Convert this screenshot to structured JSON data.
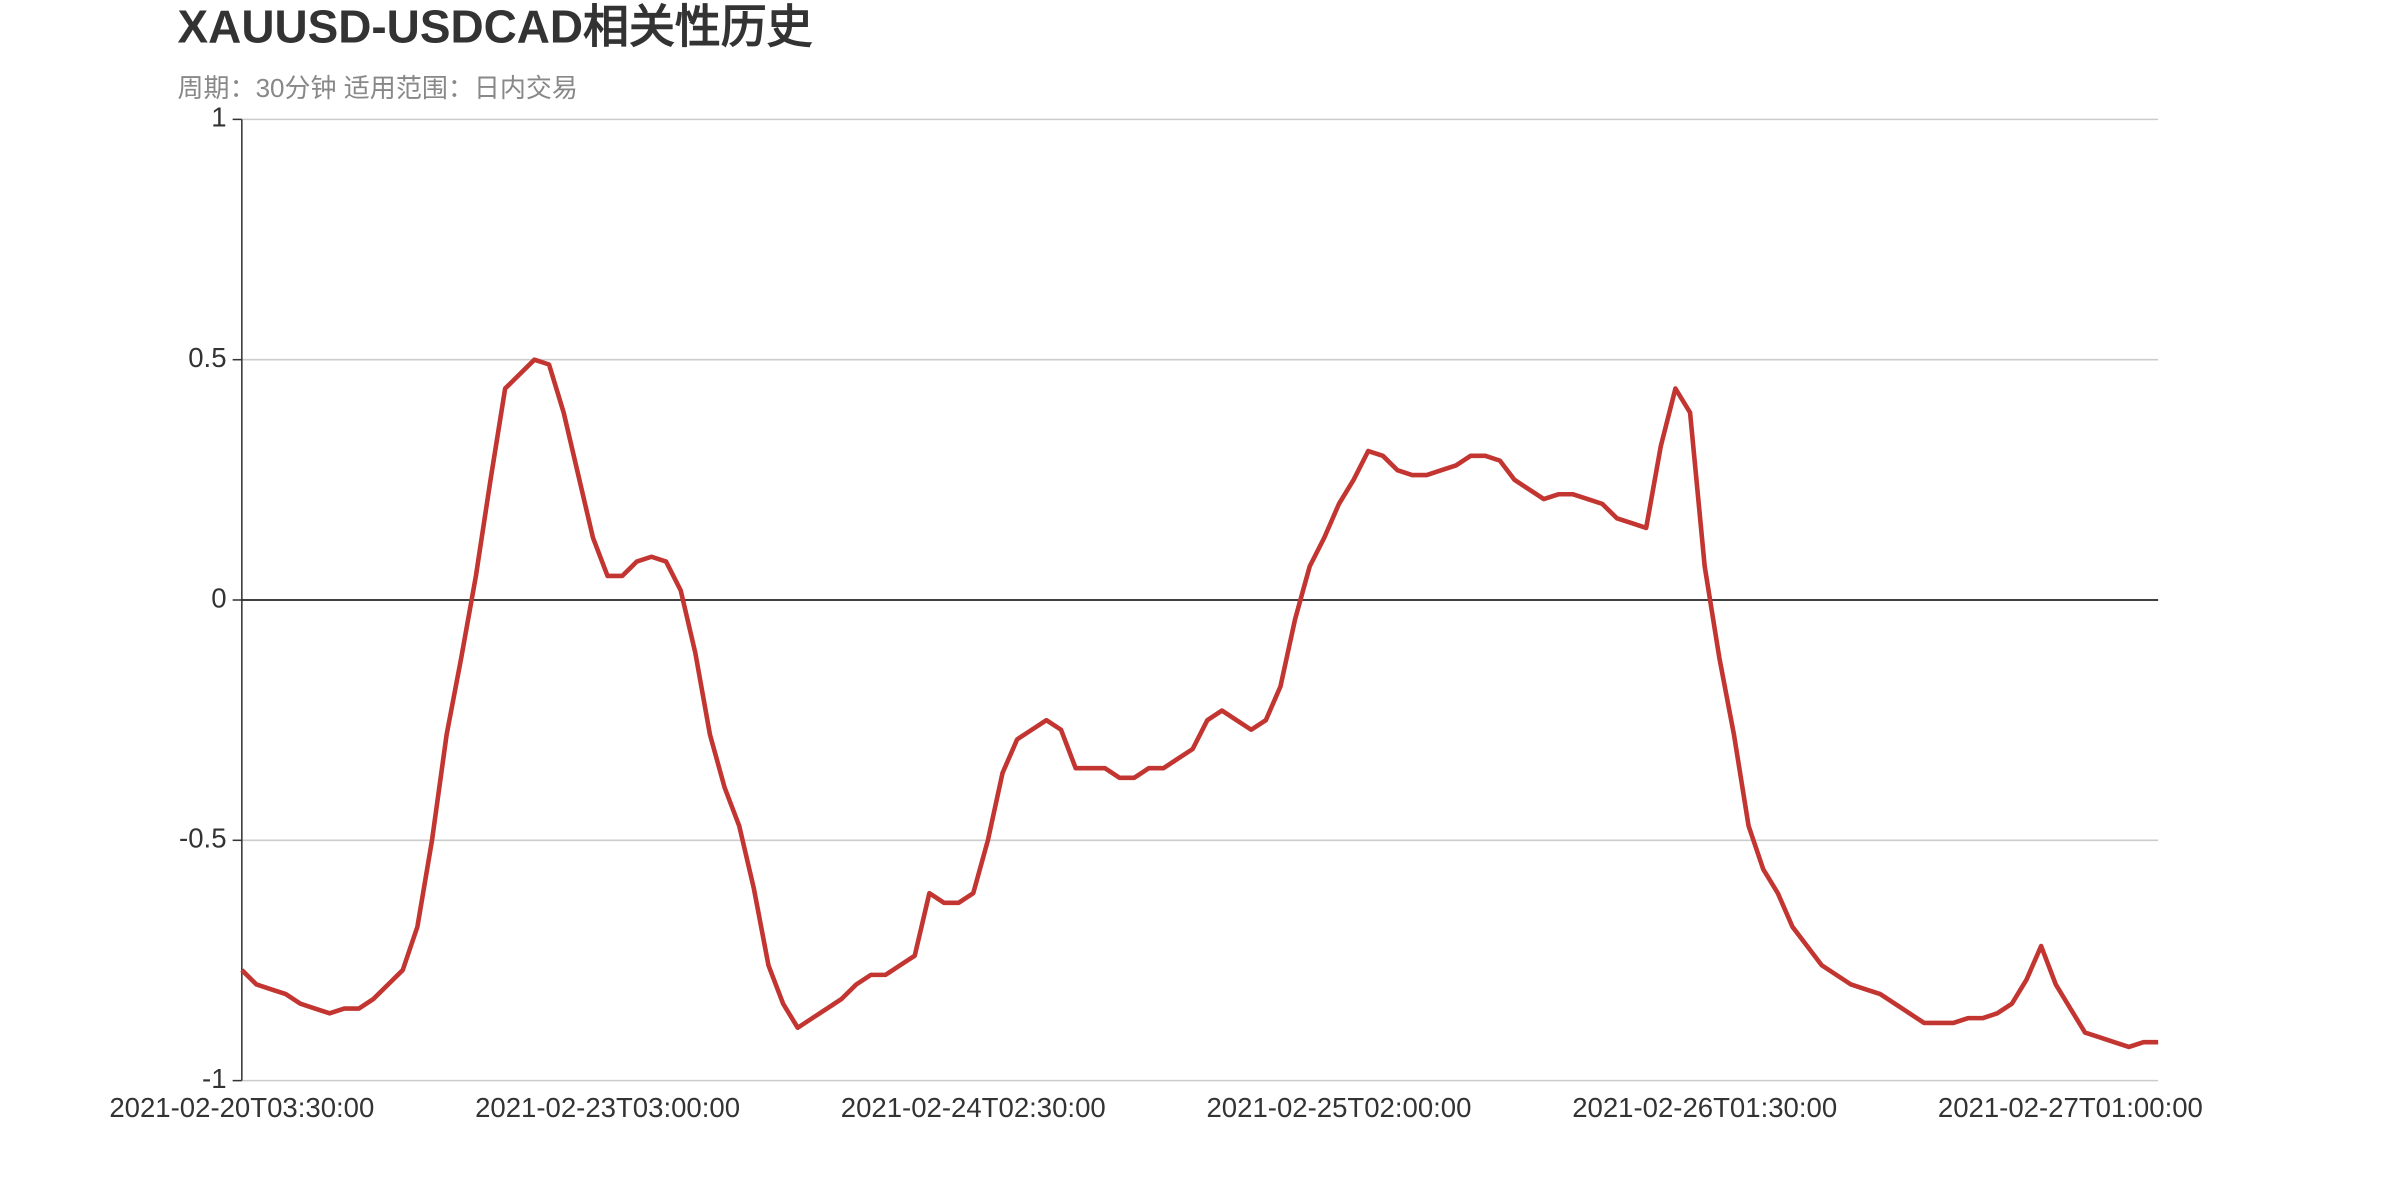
{
  "chart_data": {
    "type": "line",
    "title": "XAUUSD-USDCAD相关性历史",
    "subtitle": "周期：30分钟 适用范围：日内交易",
    "categories": [
      "2021-02-20T03:30:00",
      null,
      null,
      null,
      null,
      null,
      null,
      null,
      null,
      null,
      null,
      null,
      null,
      null,
      null,
      null,
      null,
      null,
      null,
      null,
      null,
      null,
      null,
      null,
      null,
      "2021-02-23T03:00:00",
      null,
      null,
      null,
      null,
      null,
      null,
      null,
      null,
      null,
      null,
      null,
      null,
      null,
      null,
      null,
      null,
      null,
      null,
      null,
      null,
      null,
      null,
      null,
      null,
      "2021-02-24T02:30:00",
      null,
      null,
      null,
      null,
      null,
      null,
      null,
      null,
      null,
      null,
      null,
      null,
      null,
      null,
      null,
      null,
      null,
      null,
      null,
      null,
      null,
      null,
      null,
      null,
      "2021-02-25T02:00:00",
      null,
      null,
      null,
      null,
      null,
      null,
      null,
      null,
      null,
      null,
      null,
      null,
      null,
      null,
      null,
      null,
      null,
      null,
      null,
      null,
      null,
      null,
      null,
      null,
      "2021-02-26T01:30:00",
      null,
      null,
      null,
      null,
      null,
      null,
      null,
      null,
      null,
      null,
      null,
      null,
      null,
      null,
      null,
      null,
      null,
      null,
      null,
      null,
      null,
      null,
      null,
      null,
      "2021-02-27T01:00:00",
      null,
      null,
      null,
      null,
      null,
      null
    ],
    "series": [
      {
        "color": "#c23531",
        "values": [
          -0.77,
          -0.8,
          -0.81,
          -0.82,
          -0.84,
          -0.85,
          -0.86,
          -0.85,
          -0.85,
          -0.83,
          -0.8,
          -0.77,
          -0.68,
          -0.5,
          -0.28,
          -0.12,
          0.05,
          0.25,
          0.44,
          0.47,
          0.5,
          0.49,
          0.39,
          0.26,
          0.13,
          0.05,
          0.05,
          0.08,
          0.09,
          0.08,
          0.02,
          -0.11,
          -0.28,
          -0.39,
          -0.47,
          -0.6,
          -0.76,
          -0.84,
          -0.89,
          -0.87,
          -0.85,
          -0.83,
          -0.8,
          -0.78,
          -0.78,
          -0.76,
          -0.74,
          -0.61,
          -0.63,
          -0.63,
          -0.61,
          -0.5,
          -0.36,
          -0.29,
          -0.27,
          -0.25,
          -0.27,
          -0.35,
          -0.35,
          -0.35,
          -0.37,
          -0.37,
          -0.35,
          -0.35,
          -0.33,
          -0.31,
          -0.25,
          -0.23,
          -0.25,
          -0.27,
          -0.25,
          -0.18,
          -0.04,
          0.07,
          0.13,
          0.2,
          0.25,
          0.31,
          0.3,
          0.27,
          0.26,
          0.26,
          0.27,
          0.28,
          0.3,
          0.3,
          0.29,
          0.25,
          0.23,
          0.21,
          0.22,
          0.22,
          0.21,
          0.2,
          0.17,
          0.16,
          0.15,
          0.32,
          0.44,
          0.39,
          0.07,
          -0.12,
          -0.28,
          -0.47,
          -0.56,
          -0.61,
          -0.68,
          -0.72,
          -0.76,
          -0.78,
          -0.8,
          -0.81,
          -0.82,
          -0.84,
          -0.86,
          -0.88,
          -0.88,
          -0.88,
          -0.87,
          -0.87,
          -0.86,
          -0.84,
          -0.79,
          -0.72,
          -0.8,
          -0.85,
          -0.9,
          -0.91,
          -0.92,
          -0.93,
          -0.92,
          -0.92
        ]
      }
    ],
    "ylim": [
      -1,
      1
    ],
    "yticks": [
      -1,
      -0.5,
      0,
      0.5,
      1
    ],
    "grid": true
  }
}
